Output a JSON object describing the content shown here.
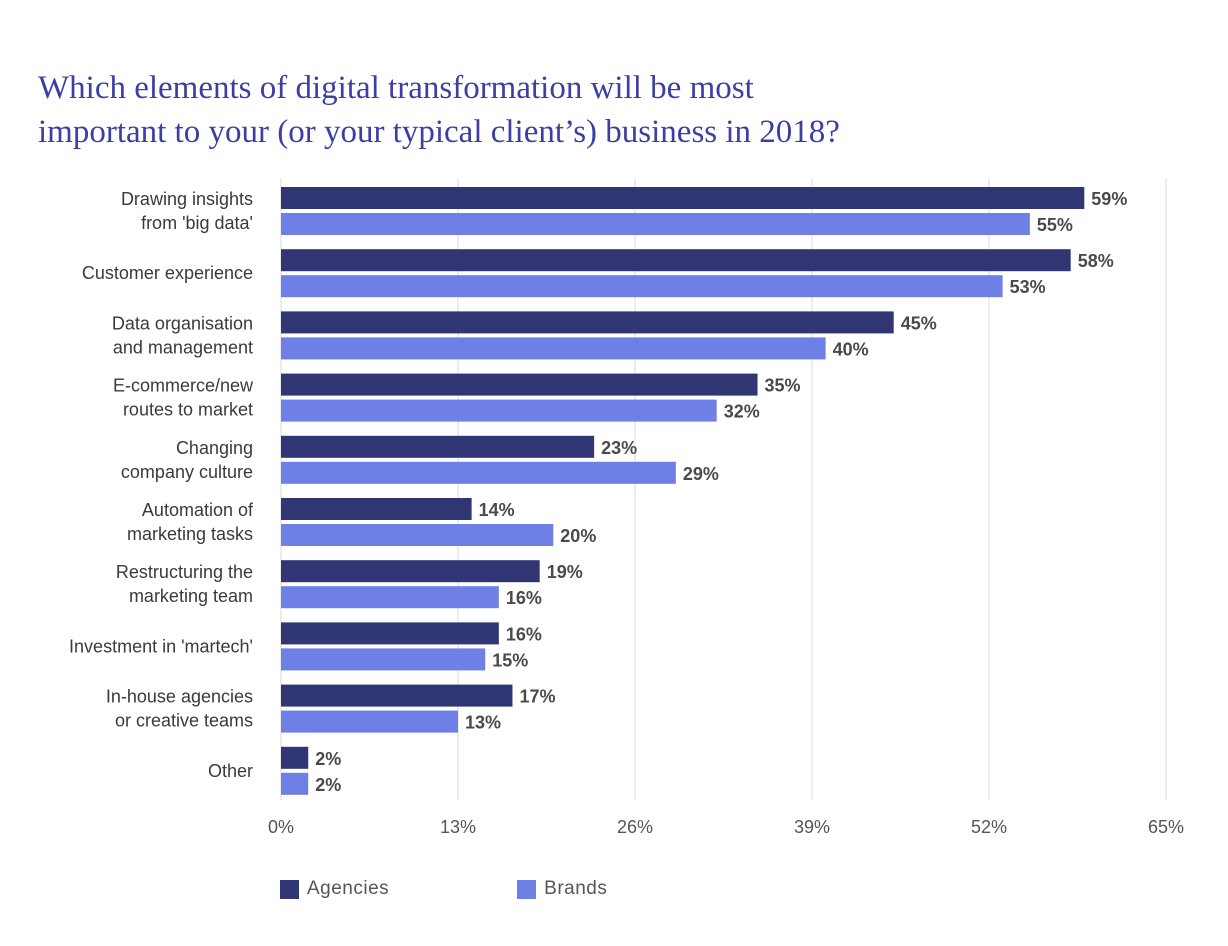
{
  "chart_title_lines": [
    "Which elements of digital transformation will be most",
    "important to your (or your typical client’s) business in 2018?"
  ],
  "colors": {
    "agencies": "#303573",
    "brands": "#6e7fe6",
    "grid": "#d9d9d9",
    "title": "#3b3fa3"
  },
  "legend": [
    {
      "label": "Agencies",
      "color": "#303573"
    },
    {
      "label": "Brands",
      "color": "#6e7fe6"
    }
  ],
  "chart_data": {
    "type": "bar",
    "orientation": "horizontal",
    "title": "Which elements of digital transformation will be most important to your (or your typical client’s) business in 2018?",
    "categories": [
      [
        "Drawing insights",
        "from 'big data'"
      ],
      [
        "Customer experience"
      ],
      [
        "Data organisation",
        "and management"
      ],
      [
        "E-commerce/new",
        "routes to market"
      ],
      [
        "Changing",
        "company culture"
      ],
      [
        "Automation of",
        "marketing tasks"
      ],
      [
        "Restructuring the",
        "marketing team"
      ],
      [
        "Investment in 'martech'"
      ],
      [
        "In-house agencies",
        "or creative teams"
      ],
      [
        "Other"
      ]
    ],
    "series": [
      {
        "name": "Agencies",
        "values": [
          59,
          58,
          45,
          35,
          23,
          14,
          19,
          16,
          17,
          2
        ]
      },
      {
        "name": "Brands",
        "values": [
          55,
          53,
          40,
          32,
          29,
          20,
          16,
          15,
          13,
          2
        ]
      }
    ],
    "value_suffix": "%",
    "xlim": [
      0,
      65
    ],
    "xticks": [
      "0%",
      "13%",
      "26%",
      "39%",
      "52%",
      "65%"
    ],
    "grid": true,
    "legend_position": "bottom-left"
  }
}
